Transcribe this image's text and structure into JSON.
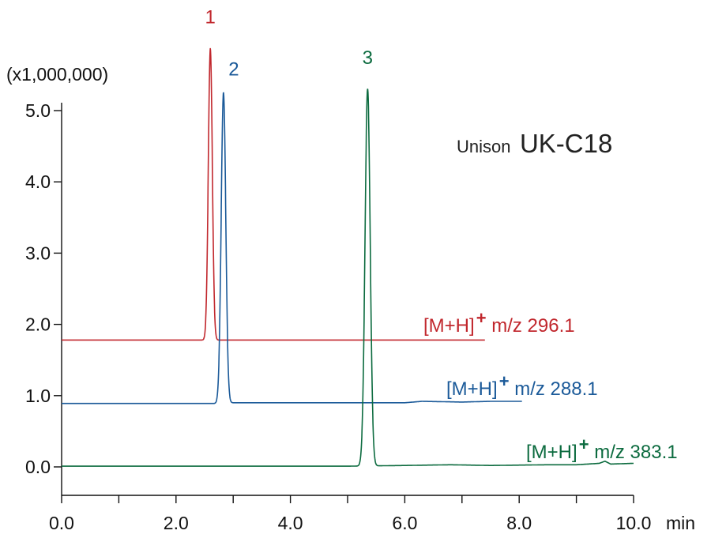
{
  "chart_data": {
    "type": "line",
    "title": "",
    "xlabel": "min",
    "ylabel": "(x1,000,000)",
    "xlim": [
      0,
      10
    ],
    "ylim": [
      -0.4,
      5.5
    ],
    "x_ticks": [
      "0.0",
      "2.0",
      "4.0",
      "6.0",
      "8.0",
      "10.0"
    ],
    "y_ticks": [
      "0.0",
      "1.0",
      "2.0",
      "3.0",
      "4.0",
      "5.0"
    ],
    "annotation": {
      "brand_prefix": "Unison",
      "brand_model": "UK-C18"
    },
    "grid": false,
    "series": [
      {
        "name": "[M+H]+ m/z 296.1",
        "label_prefix": "[M+H]",
        "label_sup": "+",
        "label_suffix": " m/z 296.1",
        "color": "#c1272d",
        "baseline": 1.78,
        "x_end": 7.4,
        "peak_label": "1",
        "peak_x": 2.6,
        "peak_y": 5.87,
        "peak_width": 0.035,
        "points": [
          [
            0.0,
            1.78
          ],
          [
            1.0,
            1.78
          ],
          [
            2.0,
            1.78
          ],
          [
            2.5,
            1.78
          ],
          [
            3.0,
            1.78
          ],
          [
            4.0,
            1.78
          ],
          [
            5.0,
            1.78
          ],
          [
            6.0,
            1.78
          ],
          [
            7.0,
            1.78
          ],
          [
            7.4,
            1.78
          ]
        ]
      },
      {
        "name": "[M+H]+ m/z 288.1",
        "label_prefix": "[M+H]",
        "label_sup": "+",
        "label_suffix": " m/z 288.1",
        "color": "#1b5a99",
        "baseline": 0.89,
        "x_end": 8.05,
        "peak_label": "2",
        "peak_x": 2.83,
        "peak_y": 5.25,
        "peak_width": 0.04,
        "points": [
          [
            0.0,
            0.89
          ],
          [
            1.0,
            0.89
          ],
          [
            2.0,
            0.89
          ],
          [
            2.7,
            0.89
          ],
          [
            3.0,
            0.9
          ],
          [
            4.0,
            0.9
          ],
          [
            5.0,
            0.9
          ],
          [
            6.0,
            0.9
          ],
          [
            6.3,
            0.92
          ],
          [
            7.0,
            0.91
          ],
          [
            7.5,
            0.92
          ],
          [
            8.05,
            0.92
          ]
        ]
      },
      {
        "name": "[M+H]+ m/z 383.1",
        "label_prefix": "[M+H]",
        "label_sup": "+",
        "label_suffix": " m/z 383.1",
        "color": "#0c6b3f",
        "baseline": 0.01,
        "x_end": 10.0,
        "peak_label": "3",
        "peak_x": 5.35,
        "peak_y": 5.3,
        "peak_width": 0.045,
        "points": [
          [
            0.0,
            0.01
          ],
          [
            1.0,
            0.01
          ],
          [
            2.0,
            0.01
          ],
          [
            3.0,
            0.01
          ],
          [
            4.0,
            0.01
          ],
          [
            5.0,
            0.01
          ],
          [
            6.0,
            0.02
          ],
          [
            6.8,
            0.03
          ],
          [
            7.5,
            0.02
          ],
          [
            8.5,
            0.03
          ],
          [
            9.0,
            0.03
          ],
          [
            9.4,
            0.05
          ],
          [
            9.5,
            0.08
          ],
          [
            9.6,
            0.04
          ],
          [
            10.0,
            0.05
          ]
        ]
      }
    ]
  }
}
